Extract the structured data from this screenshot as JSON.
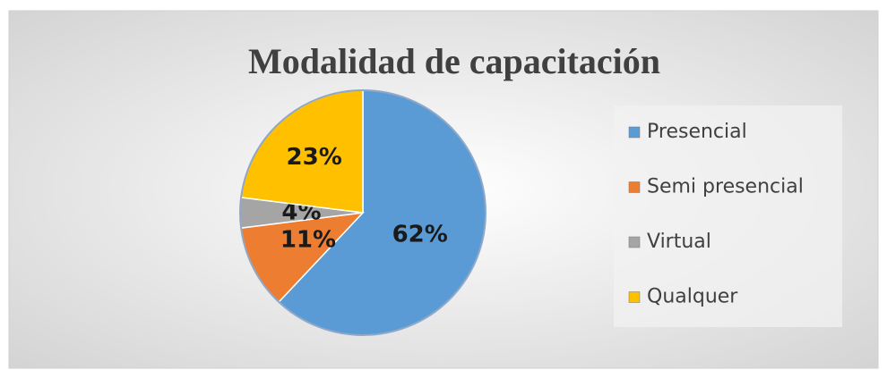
{
  "chart_data": {
    "type": "pie",
    "title": "Modalidad de capacitación",
    "categories": [
      "Presencial",
      "Semi presencial",
      "Virtual",
      "Qualquer"
    ],
    "values": [
      62,
      11,
      4,
      23
    ],
    "value_labels": [
      "62%",
      "11%",
      "4%",
      "23%"
    ],
    "colors": [
      "#5b9bd5",
      "#ed7d31",
      "#a5a5a5",
      "#ffc000"
    ],
    "legend": "right"
  }
}
